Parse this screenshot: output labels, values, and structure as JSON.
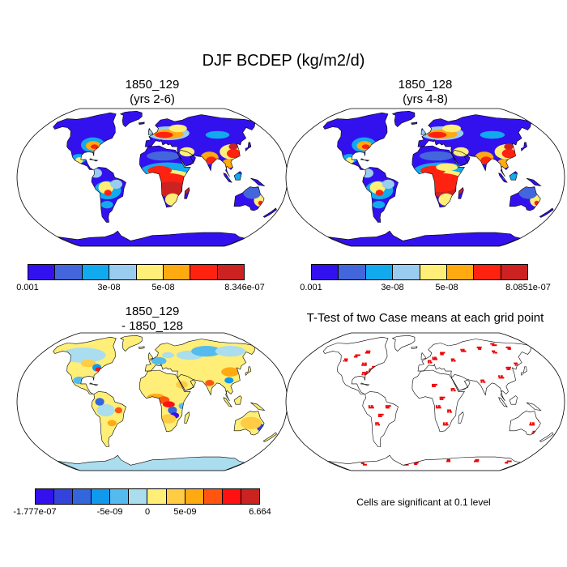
{
  "title": "DJF BCDEP (kg/m2/d)",
  "panels": [
    {
      "line1": "1850_129",
      "line2": "(yrs 2-6)"
    },
    {
      "line1": "1850_128",
      "line2": "(yrs 4-8)"
    },
    {
      "line1": "1850_129",
      "line2": "- 1850_128"
    },
    {
      "line1": "T-Test of two Case means at each grid point",
      "line2": ""
    }
  ],
  "colorbars": [
    {
      "colors": [
        "#3311ee",
        "#4466dd",
        "#11aaee",
        "#99ccee",
        "#ffee77",
        "#ffaa11",
        "#ff2211",
        "#cc2222"
      ],
      "labels": [
        "0.001",
        "3e-08",
        "5e-08",
        "8.346e-07"
      ]
    },
    {
      "colors": [
        "#3311ee",
        "#4466dd",
        "#11aaee",
        "#99ccee",
        "#ffee77",
        "#ffaa11",
        "#ff2211",
        "#cc2222"
      ],
      "labels": [
        "0.001",
        "3e-08",
        "5e-08",
        "8.0851e-07"
      ]
    },
    {
      "colors": [
        "#3311ee",
        "#3344dd",
        "#3366dd",
        "#1199ee",
        "#55bbee",
        "#aaddee",
        "#ffee77",
        "#ffcc44",
        "#ffaa11",
        "#ff5511",
        "#ff1111",
        "#cc2222"
      ],
      "labels": [
        "-1.777e-07",
        "-5e-09",
        "0",
        "5e-09",
        "6.664"
      ]
    }
  ],
  "significance_note": "Cells are significant at 0.1 level",
  "significance_color": "#ee0000"
}
